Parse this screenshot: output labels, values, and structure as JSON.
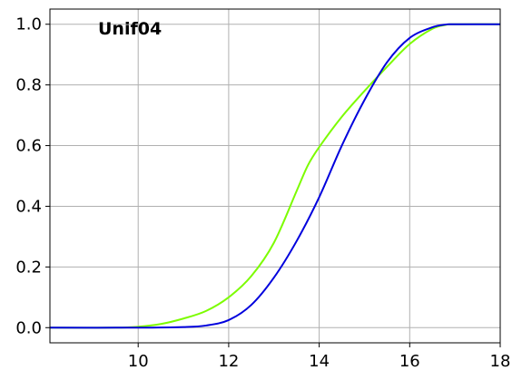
{
  "chart_data": {
    "type": "line",
    "title": "Unif04",
    "xlabel": "",
    "ylabel": "",
    "xlim": [
      8.05,
      18.0
    ],
    "ylim": [
      -0.05,
      1.05
    ],
    "grid": true,
    "xticks": [
      10,
      12,
      14,
      16,
      18
    ],
    "yticks": [
      0.0,
      0.2,
      0.4,
      0.6,
      0.8,
      1.0
    ],
    "xtick_labels": [
      "10",
      "12",
      "14",
      "16",
      "18"
    ],
    "ytick_labels": [
      "0.0",
      "0.2",
      "0.4",
      "0.6",
      "0.8",
      "1.0"
    ],
    "series": [
      {
        "color": "#7cfc00",
        "x": [
          8.05,
          9.5,
          10.0,
          10.5,
          11.0,
          11.5,
          12.0,
          12.5,
          13.0,
          13.5,
          13.75,
          14.0,
          14.5,
          15.0,
          15.5,
          16.0,
          16.5,
          16.8,
          17.0,
          18.0
        ],
        "y": [
          0.0,
          0.0,
          0.003,
          0.012,
          0.03,
          0.055,
          0.1,
          0.17,
          0.28,
          0.45,
          0.535,
          0.595,
          0.695,
          0.78,
          0.86,
          0.935,
          0.985,
          0.998,
          1.0,
          1.0
        ]
      },
      {
        "color": "#0000dd",
        "x": [
          8.05,
          10.0,
          11.0,
          11.5,
          12.0,
          12.5,
          13.0,
          13.5,
          14.0,
          14.5,
          15.0,
          15.5,
          16.0,
          16.5,
          16.8,
          17.0,
          18.0
        ],
        "y": [
          0.0,
          0.0,
          0.002,
          0.007,
          0.025,
          0.075,
          0.165,
          0.285,
          0.43,
          0.6,
          0.75,
          0.875,
          0.955,
          0.99,
          0.999,
          1.0,
          1.0
        ]
      }
    ]
  }
}
